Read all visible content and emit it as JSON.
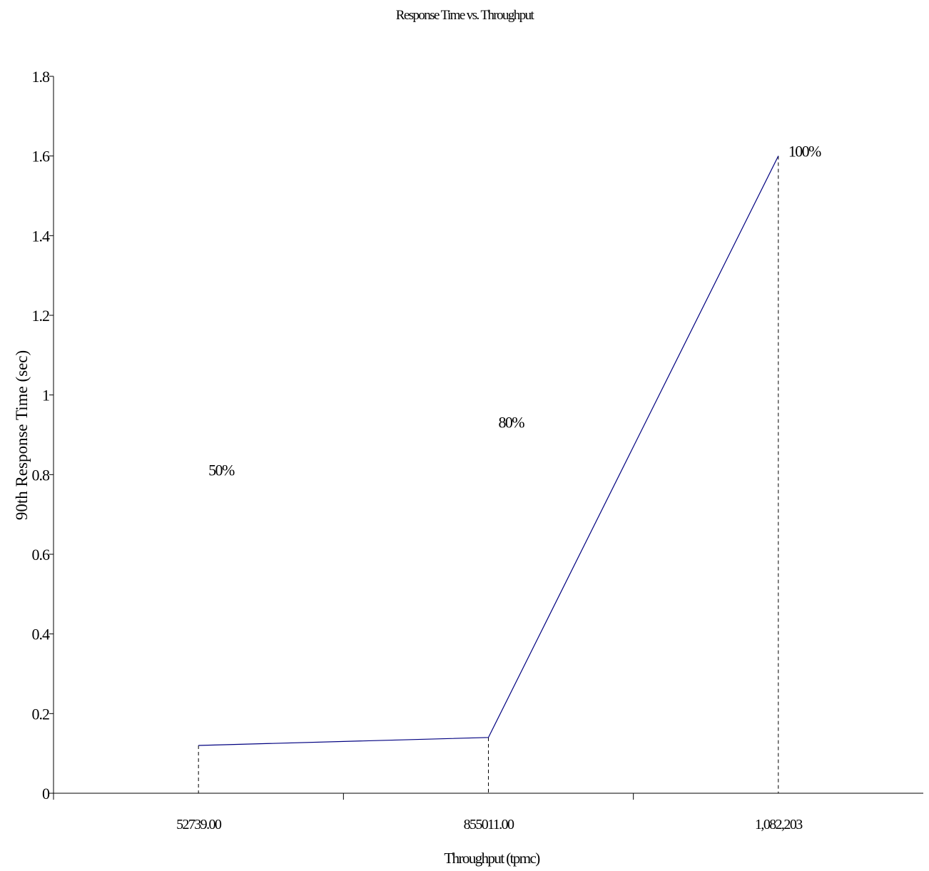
{
  "chart_data": {
    "type": "line",
    "title": "Response Time vs. Throughput",
    "xlabel": "Throughput (tpmc)",
    "ylabel": "90th Response Time (sec)",
    "categories": [
      "52739.00",
      "855011.00",
      "1,082,203"
    ],
    "series": [
      {
        "values": [
          0.12,
          0.14,
          1.6
        ],
        "point_labels": [
          "50%",
          "80%",
          "100%"
        ],
        "label_values": [
          0.8,
          0.92,
          1.6
        ]
      }
    ],
    "ylim": [
      0,
      1.8
    ],
    "yticks": [
      "0",
      "0.2",
      "0.4",
      "0.6",
      "0.8",
      "1",
      "1.2",
      "1.4",
      "1.6",
      "1.8"
    ],
    "grid": false,
    "legend": "none",
    "line_color": "#000080",
    "drop_lines": true
  }
}
